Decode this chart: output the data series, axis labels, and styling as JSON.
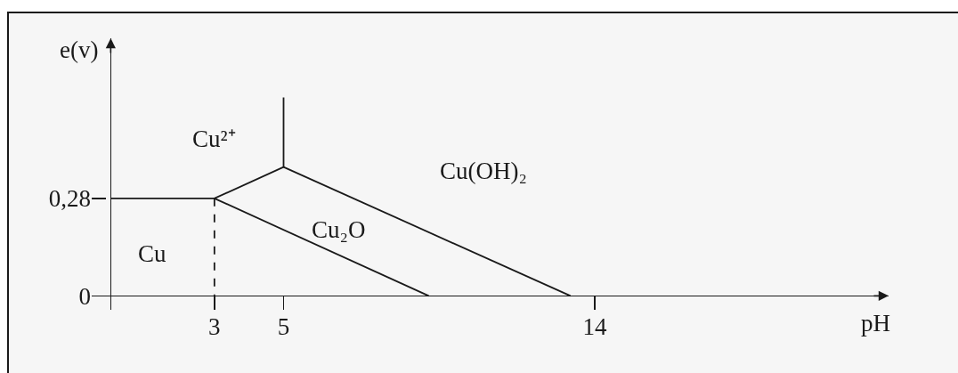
{
  "chart_data": {
    "type": "line",
    "xlabel": "pH",
    "ylabel": "e(v)",
    "series": [
      {
        "color": "#1a1a1a",
        "x": [
          0,
          3,
          5,
          5
        ],
        "values": [
          0.28,
          0.28,
          0.37,
          0.57
        ]
      },
      {
        "color": "#1a1a1a",
        "x": [
          5,
          13.3
        ],
        "values": [
          0.37,
          0
        ]
      },
      {
        "color": "#1a1a1a",
        "x": [
          3,
          9.2
        ],
        "values": [
          0.28,
          0
        ]
      },
      {
        "color": "#1a1a1a",
        "x": [
          3,
          3
        ],
        "values": [
          0.28,
          0
        ],
        "line_style": "dashed"
      }
    ],
    "annotations": [
      "Cu²⁺",
      "Cu(OH)₂",
      "Cu₂O",
      "Cu"
    ],
    "xlim": [
      -0.55,
      22.5
    ],
    "ylim": [
      -0.04,
      0.74
    ],
    "xticks": [
      3,
      5,
      14
    ],
    "yticks": [
      0,
      {
        "value": 0.28,
        "label": "0,28"
      }
    ]
  }
}
